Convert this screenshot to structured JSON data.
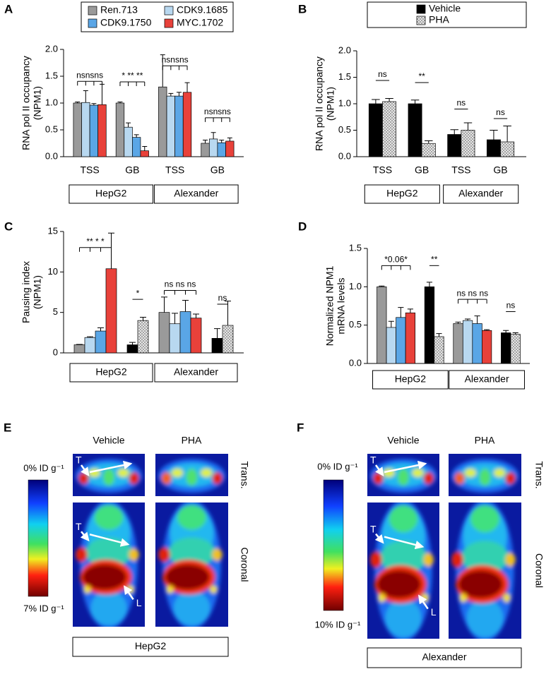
{
  "chart_data": [
    {
      "type": "bar",
      "label": "A",
      "ylabel": [
        "RNA pol II occupancy",
        "(NPM1)"
      ],
      "categories": [
        "TSS",
        "GB",
        "TSS",
        "GB"
      ],
      "groups": [
        "HepG2",
        "Alexander"
      ],
      "series": [
        {
          "name": "Ren.713",
          "color": "#9a9a9a",
          "values": [
            1.0,
            1.0,
            1.3,
            0.25
          ],
          "errors": [
            0.02,
            0.02,
            0.6,
            0.06
          ]
        },
        {
          "name": "CDK9.1685",
          "color": "#b8d8f0",
          "values": [
            1.01,
            0.55,
            1.13,
            0.33
          ],
          "errors": [
            0.22,
            0.08,
            0.05,
            0.12
          ]
        },
        {
          "name": "CDK9.1750",
          "color": "#5aa6e6",
          "values": [
            0.96,
            0.36,
            1.13,
            0.26
          ],
          "errors": [
            0.03,
            0.05,
            0.07,
            0.05
          ]
        },
        {
          "name": "MYC.1702",
          "color": "#e8413a",
          "values": [
            0.97,
            0.11,
            1.2,
            0.29
          ],
          "errors": [
            0.38,
            0.08,
            0.18,
            0.06
          ]
        }
      ],
      "ylim": [
        0,
        2
      ],
      "yticks": [
        {
          "value": 0,
          "label": "0.0"
        },
        0.5,
        {
          "value": 1,
          "label": "1.0"
        },
        1.5,
        {
          "value": 2,
          "label": "2.0"
        }
      ],
      "annotations": [
        {
          "text": "nsnsns",
          "category": 0
        },
        {
          "text": "* ** **",
          "category": 1
        },
        {
          "text": "nsnsns",
          "category": 2
        },
        {
          "text": "nsnsns",
          "category": 3
        }
      ]
    },
    {
      "type": "bar",
      "label": "B",
      "ylabel": [
        "RNA pol II occupancy",
        "(NPM1)"
      ],
      "categories": [
        "TSS",
        "GB",
        "TSS",
        "GB"
      ],
      "groups": [
        "HepG2",
        "Alexander"
      ],
      "series": [
        {
          "name": "Vehicle",
          "color": "#000000",
          "values": [
            1.0,
            1.0,
            0.42,
            0.32
          ],
          "errors": [
            0.08,
            0.07,
            0.09,
            0.18
          ]
        },
        {
          "name": "PHA",
          "color": "#e6e6e6",
          "pattern": "dots",
          "values": [
            1.04,
            0.25,
            0.5,
            0.28
          ],
          "errors": [
            0.06,
            0.05,
            0.14,
            0.3
          ]
        }
      ],
      "ylim": [
        0,
        2
      ],
      "yticks": [
        {
          "value": 0,
          "label": "0.0"
        },
        0.5,
        {
          "value": 1,
          "label": "1.0"
        },
        1.5,
        {
          "value": 2,
          "label": "2.0"
        }
      ],
      "annotations": [
        {
          "text": "ns",
          "category": 0
        },
        {
          "text": "**",
          "category": 1
        },
        {
          "text": "ns",
          "category": 2
        },
        {
          "text": "ns",
          "category": 3
        }
      ]
    },
    {
      "type": "bar",
      "label": "C",
      "ylabel": [
        "Pausing index",
        "(NPM1)"
      ],
      "categories": [
        null,
        null,
        null,
        null
      ],
      "groups": [
        "HepG2",
        "Alexander"
      ],
      "series": [
        {
          "color": "#9a9a9a",
          "values": [
            1.0,
            null,
            5.0,
            null
          ],
          "errors": [
            0.05,
            null,
            1.9,
            null
          ]
        },
        {
          "color": "#b8d8f0",
          "values": [
            1.9,
            null,
            3.6,
            null
          ],
          "errors": [
            0.1,
            null,
            1.3,
            null
          ]
        },
        {
          "color": "#5aa6e6",
          "values": [
            2.7,
            null,
            5.1,
            null
          ],
          "errors": [
            0.4,
            null,
            1.4,
            null
          ]
        },
        {
          "color": "#e8413a",
          "values": [
            10.4,
            null,
            4.3,
            null
          ],
          "errors": [
            4.4,
            null,
            0.5,
            null
          ]
        },
        {
          "color": "#000000",
          "values": [
            null,
            1.0,
            null,
            1.8
          ],
          "errors": [
            null,
            0.3,
            null,
            1.2
          ]
        },
        {
          "color": "#e6e6e6",
          "pattern": "dots",
          "values": [
            null,
            4.0,
            null,
            3.4
          ],
          "errors": [
            null,
            0.4,
            null,
            3.0
          ]
        }
      ],
      "ylim": [
        0,
        15
      ],
      "yticks": [
        0,
        5,
        10,
        15
      ],
      "annotations": [
        {
          "text": "** * *",
          "category": 0
        },
        {
          "text": "*",
          "category": 1
        },
        {
          "text": "ns ns ns",
          "category": 2
        },
        {
          "text": "ns",
          "category": 3
        }
      ]
    },
    {
      "type": "bar",
      "label": "D",
      "ylabel": [
        "Normalized NPM1",
        "mRNA levels"
      ],
      "categories": [
        null,
        null,
        null,
        null
      ],
      "groups": [
        "HepG2",
        "Alexander"
      ],
      "series": [
        {
          "color": "#9a9a9a",
          "values": [
            1.0,
            null,
            0.52,
            null
          ],
          "errors": [
            0.01,
            null,
            0.02,
            null
          ]
        },
        {
          "color": "#b8d8f0",
          "values": [
            0.47,
            null,
            0.56,
            null
          ],
          "errors": [
            0.08,
            null,
            0.02,
            null
          ]
        },
        {
          "color": "#5aa6e6",
          "values": [
            0.6,
            null,
            0.52,
            null
          ],
          "errors": [
            0.13,
            null,
            0.1,
            null
          ]
        },
        {
          "color": "#e8413a",
          "values": [
            0.66,
            null,
            0.43,
            null
          ],
          "errors": [
            0.05,
            null,
            0.01,
            null
          ]
        },
        {
          "color": "#000000",
          "values": [
            null,
            1.0,
            null,
            0.4
          ],
          "errors": [
            null,
            0.06,
            null,
            0.03
          ]
        },
        {
          "color": "#e6e6e6",
          "pattern": "dots",
          "values": [
            null,
            0.35,
            null,
            0.38
          ],
          "errors": [
            null,
            0.04,
            null,
            0.02
          ]
        }
      ],
      "ylim": [
        0,
        1.5
      ],
      "yticks": [
        {
          "value": 0,
          "label": "0.0"
        },
        0.5,
        {
          "value": 1,
          "label": "1.0"
        },
        1.5
      ],
      "annotations": [
        {
          "text": "*0.06*",
          "category": 0
        },
        {
          "text": "**",
          "category": 1
        },
        {
          "text": "ns ns ns",
          "category": 2
        },
        {
          "text": "ns",
          "category": 3
        }
      ]
    }
  ],
  "image_panels": [
    {
      "label": "E",
      "columns": [
        "Vehicle",
        "PHA"
      ],
      "rows": [
        "Trans.",
        "Coronal"
      ],
      "scale": [
        "0% ID g⁻¹",
        "7% ID g⁻¹"
      ],
      "annotations": [
        "T",
        "T",
        "L"
      ],
      "group": "HepG2"
    },
    {
      "label": "F",
      "columns": [
        "Vehicle",
        "PHA"
      ],
      "rows": [
        "Trans.",
        "Coronal"
      ],
      "scale": [
        "0% ID g⁻¹",
        "10% ID g⁻¹"
      ],
      "annotations": [
        "T",
        "T",
        "L"
      ],
      "group": "Alexander"
    }
  ]
}
